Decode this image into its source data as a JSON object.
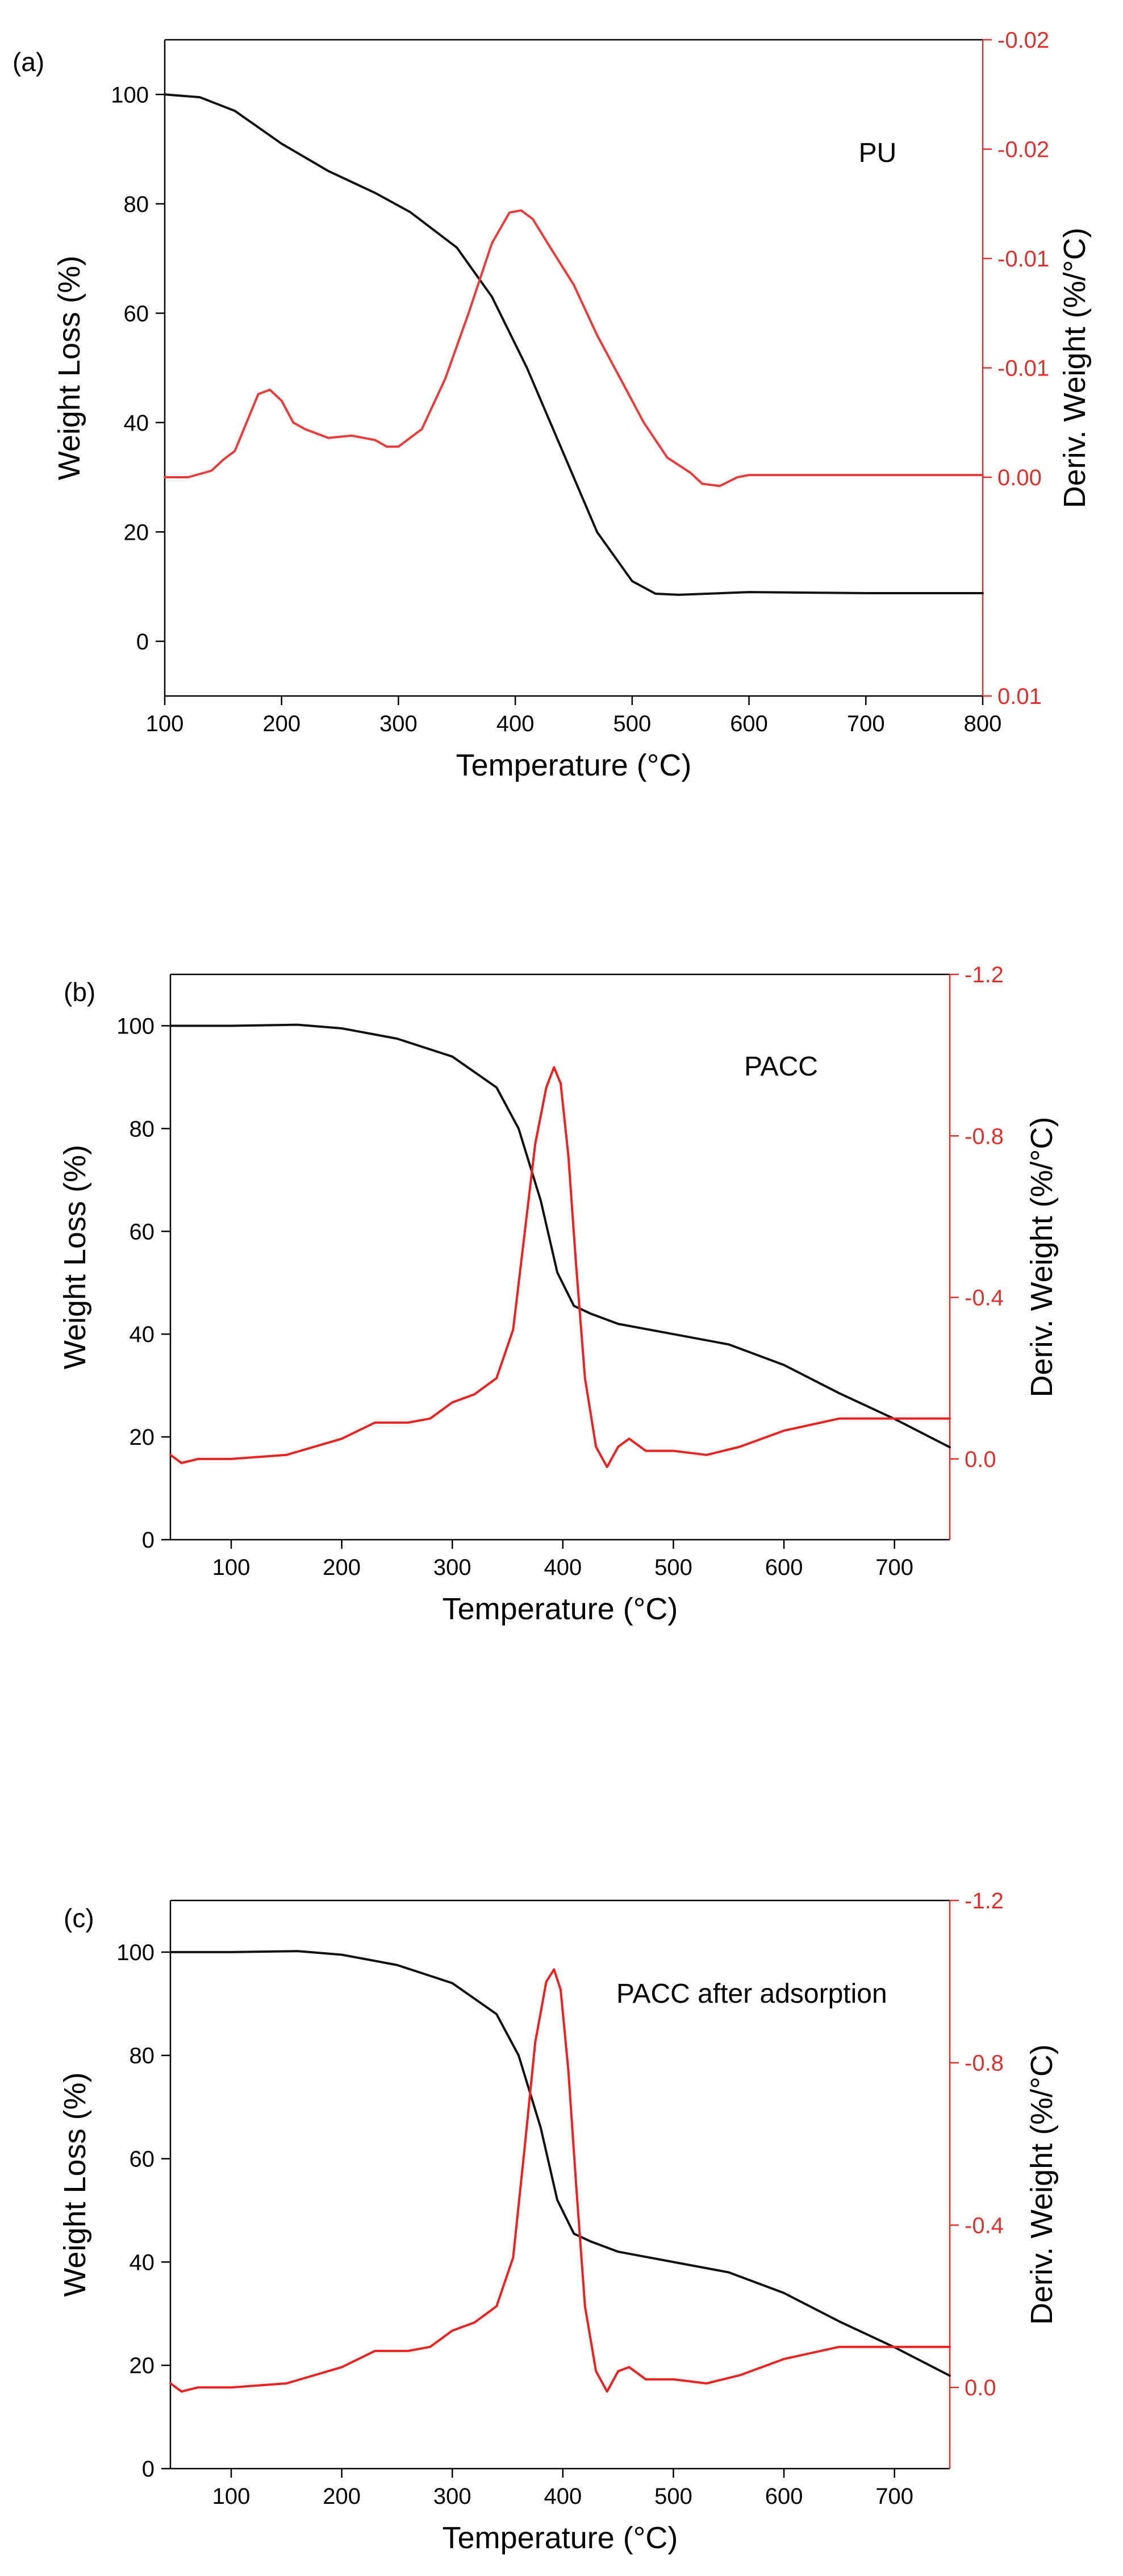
{
  "chart_data": [
    {
      "type": "line",
      "panel_label": "(a)",
      "annotation": "PU",
      "xlabel": "Temperature (°C)",
      "ylabel": "Weight Loss (%)",
      "y2label": "Deriv. Weight (%/°C)",
      "xlim": [
        100,
        800
      ],
      "ylim": [
        -10,
        110
      ],
      "y2lim": [
        0.01,
        -0.02
      ],
      "x_ticks": [
        100,
        200,
        300,
        400,
        500,
        600,
        700,
        800
      ],
      "y_ticks": [
        0,
        20,
        40,
        60,
        80,
        100
      ],
      "y2_ticks": [
        0.01,
        0.0,
        -0.005,
        -0.01,
        -0.015,
        -0.02
      ],
      "y2_tick_labels": [
        "0.01",
        "0.00",
        "-0.01",
        "-0.01",
        "-0.02",
        "-0.02"
      ],
      "colors": {
        "weight": "#111111",
        "deriv": "#ee3a3a"
      },
      "series": [
        {
          "name": "Weight Loss",
          "axis": "left",
          "x": [
            100,
            130,
            160,
            200,
            240,
            280,
            310,
            350,
            380,
            410,
            440,
            470,
            500,
            520,
            540,
            600,
            700,
            800
          ],
          "y": [
            100,
            99.5,
            97,
            91,
            86,
            82,
            78.5,
            72,
            63,
            50,
            35,
            20,
            11,
            8.7,
            8.5,
            9,
            8.8,
            8.8
          ]
        },
        {
          "name": "Deriv. Weight",
          "axis": "right",
          "x": [
            100,
            120,
            140,
            150,
            160,
            170,
            180,
            190,
            200,
            210,
            220,
            240,
            260,
            280,
            290,
            300,
            320,
            340,
            360,
            380,
            395,
            405,
            415,
            430,
            450,
            470,
            490,
            510,
            530,
            550,
            560,
            575,
            590,
            600,
            700,
            800
          ],
          "y": [
            0.0,
            0.0,
            -0.0003,
            -0.0008,
            -0.0012,
            -0.0025,
            -0.0038,
            -0.004,
            -0.0035,
            -0.0025,
            -0.0022,
            -0.0018,
            -0.0019,
            -0.0017,
            -0.0014,
            -0.0014,
            -0.0022,
            -0.0045,
            -0.0075,
            -0.0107,
            -0.0121,
            -0.0122,
            -0.0118,
            -0.0105,
            -0.0088,
            -0.0065,
            -0.0045,
            -0.0025,
            -0.0009,
            -0.0002,
            0.0003,
            0.0004,
            0.0,
            -0.0001,
            -0.0001,
            -0.0001
          ]
        }
      ]
    },
    {
      "type": "line",
      "panel_label": "(b)",
      "annotation": "PACC",
      "xlabel": "Temperature (°C)",
      "ylabel": "Weight Loss (%)",
      "y2label": "Deriv. Weight (%/°C)",
      "xlim": [
        45,
        750
      ],
      "ylim": [
        0,
        110
      ],
      "y2lim": [
        0.2,
        -1.2
      ],
      "x_ticks": [
        100,
        200,
        300,
        400,
        500,
        600,
        700
      ],
      "y_ticks": [
        0,
        20,
        40,
        60,
        80,
        100
      ],
      "y2_ticks": [
        0.0,
        -0.4,
        -0.8,
        -1.2
      ],
      "y2_tick_labels": [
        "0.0",
        "-0.4",
        "-0.8",
        "-1.2"
      ],
      "colors": {
        "weight": "#111111",
        "deriv": "#ee2020"
      },
      "series": [
        {
          "name": "Weight Loss",
          "axis": "left",
          "x": [
            45,
            100,
            160,
            200,
            250,
            300,
            340,
            360,
            380,
            395,
            410,
            425,
            450,
            500,
            550,
            600,
            650,
            700,
            750
          ],
          "y": [
            100,
            100,
            100.2,
            99.5,
            97.5,
            94,
            88,
            80,
            66,
            52,
            45.5,
            44,
            42,
            40,
            38,
            34,
            28.5,
            23.5,
            18
          ]
        },
        {
          "name": "Deriv. Weight",
          "axis": "right",
          "x": [
            45,
            55,
            70,
            100,
            150,
            200,
            230,
            260,
            280,
            300,
            320,
            340,
            355,
            365,
            375,
            385,
            392,
            398,
            405,
            412,
            420,
            430,
            440,
            450,
            460,
            475,
            500,
            530,
            560,
            600,
            650,
            700,
            750
          ],
          "y": [
            -0.01,
            0.01,
            0.0,
            0.0,
            -0.01,
            -0.05,
            -0.09,
            -0.09,
            -0.1,
            -0.14,
            -0.16,
            -0.2,
            -0.32,
            -0.55,
            -0.78,
            -0.92,
            -0.97,
            -0.93,
            -0.75,
            -0.48,
            -0.2,
            -0.03,
            0.02,
            -0.03,
            -0.05,
            -0.02,
            -0.02,
            -0.01,
            -0.03,
            -0.07,
            -0.1,
            -0.1,
            -0.1
          ]
        }
      ]
    },
    {
      "type": "line",
      "panel_label": "(c)",
      "annotation": "PACC after adsorption",
      "xlabel": "Temperature (°C)",
      "ylabel": "Weight Loss (%)",
      "y2label": "Deriv. Weight (%/°C)",
      "xlim": [
        45,
        750
      ],
      "ylim": [
        0,
        110
      ],
      "y2lim": [
        0.2,
        -1.2
      ],
      "x_ticks": [
        100,
        200,
        300,
        400,
        500,
        600,
        700
      ],
      "y_ticks": [
        0,
        20,
        40,
        60,
        80,
        100
      ],
      "y2_ticks": [
        0.0,
        -0.4,
        -0.8,
        -1.2
      ],
      "y2_tick_labels": [
        "0.0",
        "-0.4",
        "-0.8",
        "-1.2"
      ],
      "colors": {
        "weight": "#111111",
        "deriv": "#ee2020"
      },
      "series": [
        {
          "name": "Weight Loss",
          "axis": "left",
          "x": [
            45,
            100,
            160,
            200,
            250,
            300,
            340,
            360,
            380,
            395,
            410,
            425,
            450,
            500,
            550,
            600,
            650,
            700,
            750
          ],
          "y": [
            100,
            100,
            100.2,
            99.5,
            97.5,
            94,
            88,
            80,
            66,
            52,
            45.5,
            44,
            42,
            40,
            38,
            34,
            28.5,
            23.5,
            18
          ]
        },
        {
          "name": "Deriv. Weight",
          "axis": "right",
          "x": [
            45,
            55,
            70,
            100,
            150,
            200,
            230,
            260,
            280,
            300,
            320,
            340,
            355,
            365,
            375,
            385,
            392,
            398,
            405,
            412,
            420,
            430,
            440,
            450,
            460,
            475,
            500,
            530,
            560,
            600,
            650,
            700,
            750
          ],
          "y": [
            -0.01,
            0.01,
            0.0,
            0.0,
            -0.01,
            -0.05,
            -0.09,
            -0.09,
            -0.1,
            -0.14,
            -0.16,
            -0.2,
            -0.32,
            -0.58,
            -0.85,
            -1.0,
            -1.03,
            -0.98,
            -0.78,
            -0.5,
            -0.2,
            -0.04,
            0.01,
            -0.04,
            -0.05,
            -0.02,
            -0.02,
            -0.01,
            -0.03,
            -0.07,
            -0.1,
            -0.1,
            -0.1
          ]
        }
      ]
    }
  ]
}
